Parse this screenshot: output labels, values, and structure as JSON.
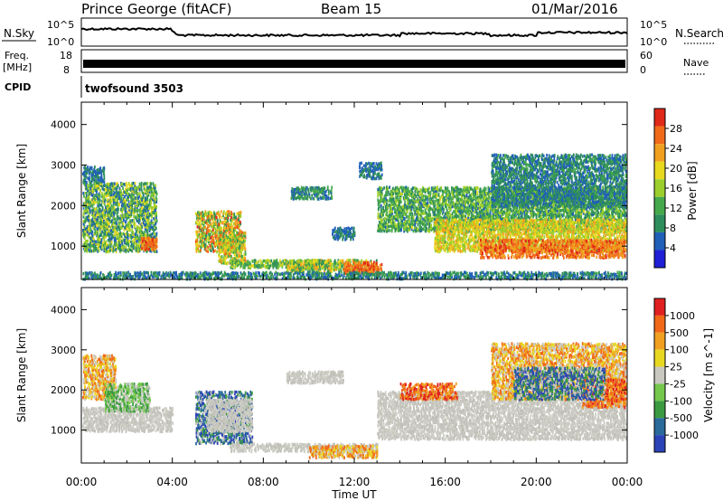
{
  "header": {
    "station": "Prince George (fitACF)",
    "beam": "Beam 15",
    "date": "01/Mar/2016"
  },
  "top_panels": {
    "nsky_label": "N.Sky",
    "nsky_ticks": [
      "10^5",
      "10^0"
    ],
    "nsearch_label": "N.Search",
    "nsearch_ticks": [
      "10^5",
      "10^0"
    ],
    "freq_label": "Freq.",
    "freq_unit": "[MHz]",
    "freq_ticks": [
      "18",
      "8"
    ],
    "nave_label": "Nave",
    "nave_ticks": [
      "60",
      "0"
    ],
    "cpid_label": "CPID",
    "cpid_value": "twofsound 3503"
  },
  "x_axis": {
    "label": "Time UT",
    "ticks": [
      "00:00",
      "04:00",
      "08:00",
      "12:00",
      "16:00",
      "20:00",
      "00:00"
    ]
  },
  "chart_data": [
    {
      "type": "heatmap",
      "panel": "power",
      "ylabel": "Slant Range [km]",
      "yticks": [
        "4000",
        "3000",
        "2000",
        "1000"
      ],
      "ylim": [
        180,
        4550
      ],
      "xlim": [
        0,
        24
      ],
      "colorbar_label": "Power [dB]",
      "colorbar_ticks": [
        "28",
        "24",
        "20",
        "16",
        "12",
        "8",
        "4"
      ],
      "colorbar_range": [
        0,
        32
      ],
      "colors": [
        "#1f1fd6",
        "#2060b8",
        "#2e8d5c",
        "#46a94c",
        "#9ccf2c",
        "#e8d81e",
        "#f0a020",
        "#f06a1a",
        "#e02818"
      ],
      "regions": [
        {
          "t": [
            0.0,
            3.3
          ],
          "r": [
            900,
            2600
          ],
          "v": [
            4,
            20
          ]
        },
        {
          "t": [
            2.6,
            3.3
          ],
          "r": [
            950,
            1250
          ],
          "v": [
            22,
            30
          ]
        },
        {
          "t": [
            0.0,
            1.0
          ],
          "r": [
            2600,
            3000
          ],
          "v": [
            4,
            10
          ]
        },
        {
          "t": [
            5.0,
            7.0
          ],
          "r": [
            900,
            1900
          ],
          "v": [
            8,
            30
          ]
        },
        {
          "t": [
            6.0,
            7.2
          ],
          "r": [
            600,
            1400
          ],
          "v": [
            10,
            26
          ]
        },
        {
          "t": [
            6.5,
            11.0
          ],
          "r": [
            500,
            700
          ],
          "v": [
            8,
            20
          ]
        },
        {
          "t": [
            9.0,
            13.0
          ],
          "r": [
            400,
            700
          ],
          "v": [
            8,
            24
          ]
        },
        {
          "t": [
            11.5,
            13.2
          ],
          "r": [
            350,
            650
          ],
          "v": [
            22,
            30
          ]
        },
        {
          "t": [
            9.2,
            11.0
          ],
          "r": [
            2200,
            2500
          ],
          "v": [
            4,
            14
          ]
        },
        {
          "t": [
            12.2,
            13.2
          ],
          "r": [
            2700,
            3100
          ],
          "v": [
            4,
            10
          ]
        },
        {
          "t": [
            11.0,
            12.0
          ],
          "r": [
            1200,
            1500
          ],
          "v": [
            4,
            10
          ]
        },
        {
          "t": [
            13.0,
            24.0
          ],
          "r": [
            1400,
            2500
          ],
          "v": [
            6,
            18
          ]
        },
        {
          "t": [
            15.5,
            24.0
          ],
          "r": [
            900,
            1700
          ],
          "v": [
            14,
            24
          ]
        },
        {
          "t": [
            17.5,
            24.0
          ],
          "r": [
            750,
            1200
          ],
          "v": [
            22,
            30
          ]
        },
        {
          "t": [
            18.0,
            24.0
          ],
          "r": [
            2000,
            3300
          ],
          "v": [
            4,
            12
          ]
        },
        {
          "t": [
            0.0,
            24.0
          ],
          "r": [
            200,
            400
          ],
          "v": [
            4,
            12
          ]
        }
      ]
    },
    {
      "type": "heatmap",
      "panel": "velocity",
      "ylabel": "Slant Range [km]",
      "yticks": [
        "4000",
        "3000",
        "2000",
        "1000"
      ],
      "ylim": [
        180,
        4550
      ],
      "xlim": [
        0,
        24
      ],
      "colorbar_label": "Velocity [m s^-1]",
      "colorbar_ticks": [
        "1000",
        "500",
        "100",
        "25",
        "-25",
        "-100",
        "-500",
        "-1000"
      ],
      "colors": [
        "#2a44b8",
        "#2a6a9a",
        "#3a9a40",
        "#74c84c",
        "#c8c8c0",
        "#e8d820",
        "#f0a020",
        "#f06818",
        "#e02020"
      ],
      "regions": [
        {
          "t": [
            0.0,
            4.0
          ],
          "r": [
            1000,
            1600
          ],
          "class": "gray"
        },
        {
          "t": [
            0.0,
            1.5
          ],
          "r": [
            1800,
            2900
          ],
          "class": "orange"
        },
        {
          "t": [
            1.0,
            3.0
          ],
          "r": [
            1500,
            2200
          ],
          "class": "green"
        },
        {
          "t": [
            5.0,
            7.5
          ],
          "r": [
            700,
            2000
          ],
          "class": "blue"
        },
        {
          "t": [
            5.5,
            7.5
          ],
          "r": [
            1000,
            1800
          ],
          "class": "gray"
        },
        {
          "t": [
            6.5,
            13.0
          ],
          "r": [
            500,
            700
          ],
          "class": "gray"
        },
        {
          "t": [
            10.0,
            13.0
          ],
          "r": [
            350,
            650
          ],
          "class": "orange"
        },
        {
          "t": [
            9.0,
            11.5
          ],
          "r": [
            2200,
            2500
          ],
          "class": "gray"
        },
        {
          "t": [
            13.0,
            24.0
          ],
          "r": [
            800,
            2000
          ],
          "class": "gray"
        },
        {
          "t": [
            14.0,
            16.5
          ],
          "r": [
            1800,
            2200
          ],
          "class": "red"
        },
        {
          "t": [
            18.0,
            24.0
          ],
          "r": [
            1800,
            3200
          ],
          "class": "orange"
        },
        {
          "t": [
            22.0,
            24.0
          ],
          "r": [
            1600,
            2300
          ],
          "class": "red"
        },
        {
          "t": [
            19.0,
            23.0
          ],
          "r": [
            1800,
            2600
          ],
          "class": "blue"
        }
      ]
    }
  ]
}
